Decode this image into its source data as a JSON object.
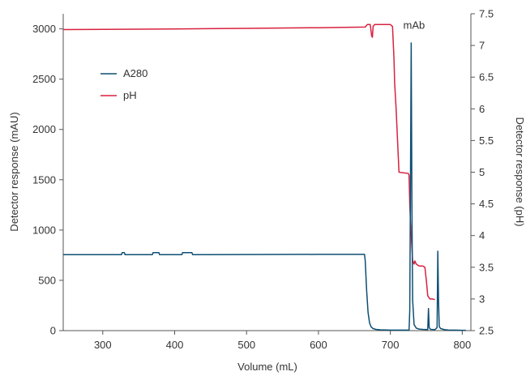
{
  "chart_data": {
    "type": "line",
    "title": "",
    "xlabel": "Volume (mL)",
    "ylabel_left": "Detector response (mAU)",
    "ylabel_right": "Detector response (pH)",
    "xlim": [
      245,
      812
    ],
    "ylim_left": [
      0,
      3150
    ],
    "ylim_right": [
      2.5,
      7.5
    ],
    "x_ticks": [
      300,
      400,
      500,
      600,
      700,
      800
    ],
    "y_ticks_left": [
      0,
      500,
      1000,
      1500,
      2000,
      2500,
      3000
    ],
    "y_ticks_right": [
      2.5,
      3,
      3.5,
      4,
      4.5,
      5,
      5.5,
      6,
      6.5,
      7,
      7.5
    ],
    "grid": false,
    "legend_position": "upper-left",
    "annotation": {
      "text": "mAb",
      "x": 733,
      "y": 3000
    },
    "series": [
      {
        "name": "A280",
        "axis": "left",
        "color": "#0d4f73",
        "x": [
          245,
          326,
          327,
          330,
          331,
          369,
          370,
          378,
          379,
          410,
          411,
          424,
          425,
          600,
          664,
          665,
          667,
          669,
          671,
          673,
          676,
          680,
          686,
          700,
          712,
          726,
          727,
          728,
          729,
          730,
          731,
          733,
          736,
          740,
          745,
          752,
          753,
          754,
          756,
          762,
          765,
          766,
          767,
          768,
          770,
          775,
          778,
          780,
          790,
          800,
          805
        ],
        "y": [
          755,
          755,
          775,
          775,
          755,
          755,
          775,
          775,
          755,
          755,
          775,
          775,
          755,
          758,
          758,
          700,
          400,
          180,
          80,
          40,
          20,
          12,
          8,
          5,
          5,
          5,
          200,
          1500,
          2860,
          1200,
          300,
          60,
          25,
          15,
          12,
          10,
          220,
          30,
          12,
          10,
          30,
          790,
          300,
          40,
          20,
          10,
          8,
          6,
          5,
          3,
          3
        ]
      },
      {
        "name": "pH",
        "axis": "right",
        "color": "#d8213f",
        "x": [
          245,
          400,
          500,
          600,
          665,
          668,
          672,
          674,
          675,
          676,
          678,
          682,
          700,
          703,
          705,
          706,
          708,
          712,
          725,
          726,
          727,
          728,
          730,
          731,
          732,
          733,
          734,
          736,
          740,
          745,
          748,
          750,
          752,
          755,
          758,
          762
        ],
        "y": [
          7.25,
          7.26,
          7.27,
          7.28,
          7.29,
          7.33,
          7.33,
          7.15,
          7.13,
          7.3,
          7.33,
          7.33,
          7.33,
          7.3,
          6.8,
          6.4,
          6.0,
          5.0,
          4.98,
          4.95,
          4.5,
          4.2,
          3.8,
          3.6,
          3.58,
          3.55,
          3.6,
          3.55,
          3.52,
          3.52,
          3.5,
          3.3,
          3.05,
          3.0,
          3.0,
          2.99
        ]
      }
    ]
  }
}
